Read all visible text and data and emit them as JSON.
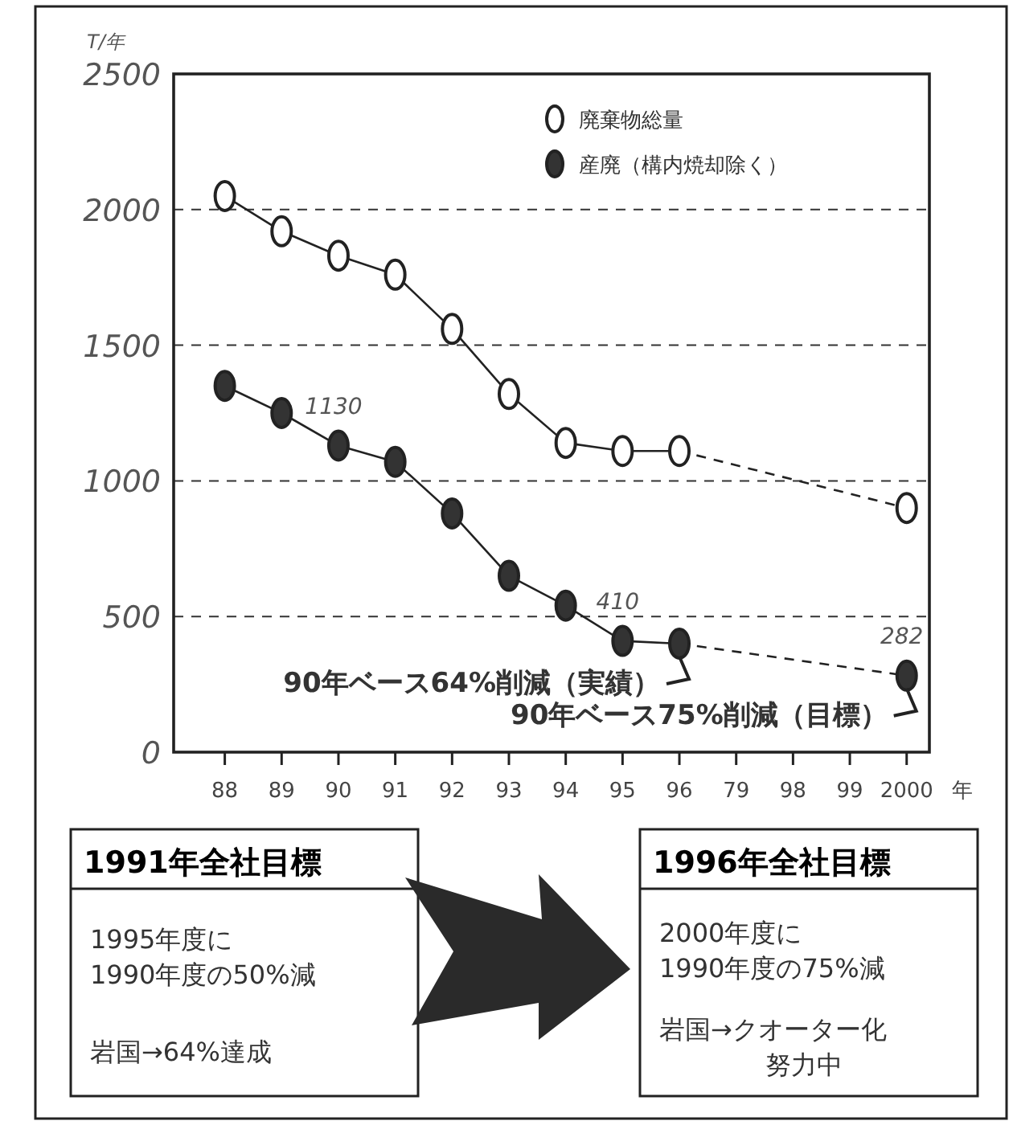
{
  "chart_data": {
    "type": "line",
    "ylabel": "T/年",
    "xlabel": "年",
    "categories": [
      "88",
      "89",
      "90",
      "91",
      "92",
      "93",
      "94",
      "95",
      "96",
      "79",
      "98",
      "99",
      "2000"
    ],
    "series": [
      {
        "name": "廃棄物総量",
        "color": "#ffffff",
        "marker": "circle",
        "line_style": "solid",
        "values": [
          2050,
          1920,
          1830,
          1760,
          1560,
          1320,
          1140,
          1110,
          1110,
          null,
          null,
          null,
          900
        ]
      },
      {
        "name": "産廃（構内焼却除く）",
        "color": "#333333",
        "marker": "circle",
        "line_style": "solid",
        "values": [
          1350,
          1250,
          1130,
          1070,
          880,
          650,
          540,
          410,
          400,
          null,
          null,
          null,
          282
        ],
        "value_labels": [
          null,
          null,
          "1130",
          null,
          null,
          null,
          null,
          "410",
          null,
          null,
          null,
          null,
          "282"
        ]
      }
    ],
    "ylim": [
      0,
      2500
    ],
    "yticks": [
      0,
      500,
      1000,
      1500,
      2000,
      2500
    ],
    "grid": "y",
    "legend": "top right",
    "annotations": [
      {
        "text": "90年ベース64%削減（実績）",
        "x": "96",
        "y": 400
      },
      {
        "text": "90年ベース75%削減（目標）",
        "x": "2000",
        "y": 282
      },
      "1991年全社目標",
      "1995年度に",
      "1990年度の50%減",
      "岩国→64%達成",
      "1996年全社目標",
      "2000年度に",
      "1990年度の75%減",
      "岩国→クオーター化",
      "努力中"
    ]
  }
}
